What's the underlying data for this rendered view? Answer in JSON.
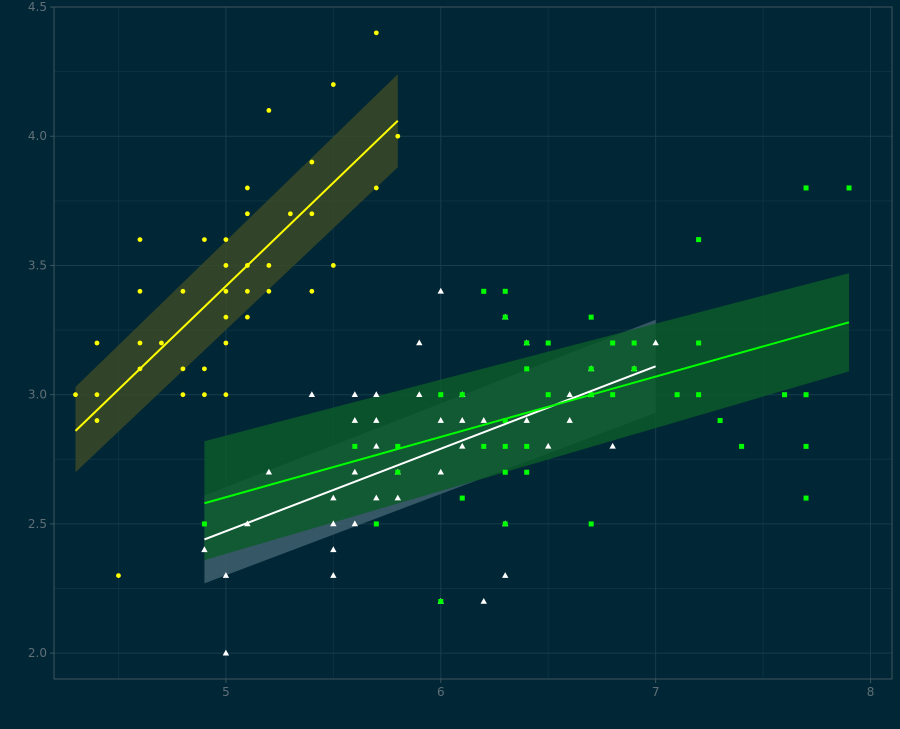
{
  "chart_data": {
    "type": "scatter",
    "title": "",
    "xlabel": "",
    "ylabel": "",
    "xlim": [
      4.2,
      8.1
    ],
    "ylim": [
      1.9,
      4.5
    ],
    "x_ticks": [
      5,
      6,
      7,
      8
    ],
    "y_ticks": [
      2.0,
      2.5,
      3.0,
      3.5,
      4.0,
      4.5
    ],
    "x_tick_labels": [
      "5",
      "6",
      "7",
      "8"
    ],
    "y_tick_labels": [
      "2.0",
      "2.5",
      "3.0",
      "3.5",
      "4.0",
      "4.5"
    ],
    "grid": true,
    "legend": "none",
    "background": "#012635",
    "series": [
      {
        "marker": "circle",
        "color": "#ffff00",
        "band_color": "#3a4a27",
        "fit": {
          "x": [
            4.3,
            5.8
          ],
          "y": [
            2.86,
            4.06
          ],
          "lower": [
            2.7,
            3.88
          ],
          "upper": [
            3.03,
            4.24
          ]
        },
        "points": [
          [
            4.3,
            3.0
          ],
          [
            4.4,
            2.9
          ],
          [
            4.4,
            3.0
          ],
          [
            4.4,
            3.2
          ],
          [
            4.5,
            2.3
          ],
          [
            4.6,
            3.1
          ],
          [
            4.6,
            3.2
          ],
          [
            4.6,
            3.4
          ],
          [
            4.6,
            3.6
          ],
          [
            4.7,
            3.2
          ],
          [
            4.8,
            3.0
          ],
          [
            4.8,
            3.1
          ],
          [
            4.8,
            3.4
          ],
          [
            4.9,
            3.0
          ],
          [
            4.9,
            3.1
          ],
          [
            4.9,
            3.6
          ],
          [
            5.0,
            3.0
          ],
          [
            5.0,
            3.2
          ],
          [
            5.0,
            3.3
          ],
          [
            5.0,
            3.4
          ],
          [
            5.0,
            3.5
          ],
          [
            5.0,
            3.6
          ],
          [
            5.1,
            3.3
          ],
          [
            5.1,
            3.4
          ],
          [
            5.1,
            3.5
          ],
          [
            5.1,
            3.7
          ],
          [
            5.1,
            3.8
          ],
          [
            5.2,
            3.4
          ],
          [
            5.2,
            3.5
          ],
          [
            5.2,
            4.1
          ],
          [
            5.3,
            3.7
          ],
          [
            5.4,
            3.4
          ],
          [
            5.4,
            3.7
          ],
          [
            5.4,
            3.9
          ],
          [
            5.5,
            3.5
          ],
          [
            5.5,
            4.2
          ],
          [
            5.7,
            3.8
          ],
          [
            5.7,
            4.4
          ],
          [
            5.8,
            4.0
          ]
        ]
      },
      {
        "marker": "triangle",
        "color": "#ffffff",
        "band_color": "#40606d",
        "fit": {
          "x": [
            4.9,
            7.0
          ],
          "y": [
            2.44,
            3.11
          ],
          "lower": [
            2.27,
            2.93
          ],
          "upper": [
            2.61,
            3.29
          ]
        },
        "points": [
          [
            4.9,
            2.4
          ],
          [
            5.0,
            2.0
          ],
          [
            5.0,
            2.3
          ],
          [
            5.1,
            2.5
          ],
          [
            5.2,
            2.7
          ],
          [
            5.4,
            3.0
          ],
          [
            5.5,
            2.3
          ],
          [
            5.5,
            2.4
          ],
          [
            5.5,
            2.5
          ],
          [
            5.5,
            2.6
          ],
          [
            5.6,
            2.5
          ],
          [
            5.6,
            2.7
          ],
          [
            5.6,
            2.9
          ],
          [
            5.6,
            3.0
          ],
          [
            5.7,
            2.6
          ],
          [
            5.7,
            2.8
          ],
          [
            5.7,
            2.9
          ],
          [
            5.7,
            3.0
          ],
          [
            5.8,
            2.6
          ],
          [
            5.8,
            2.7
          ],
          [
            5.9,
            3.0
          ],
          [
            5.9,
            3.2
          ],
          [
            6.0,
            2.2
          ],
          [
            6.0,
            2.7
          ],
          [
            6.0,
            2.9
          ],
          [
            6.0,
            3.4
          ],
          [
            6.1,
            2.8
          ],
          [
            6.1,
            2.9
          ],
          [
            6.1,
            3.0
          ],
          [
            6.2,
            2.2
          ],
          [
            6.2,
            2.9
          ],
          [
            6.3,
            2.3
          ],
          [
            6.3,
            2.5
          ],
          [
            6.3,
            3.3
          ],
          [
            6.4,
            2.9
          ],
          [
            6.4,
            3.2
          ],
          [
            6.5,
            2.8
          ],
          [
            6.6,
            2.9
          ],
          [
            6.6,
            3.0
          ],
          [
            6.7,
            3.0
          ],
          [
            6.7,
            3.1
          ],
          [
            6.8,
            2.8
          ],
          [
            6.9,
            3.1
          ],
          [
            7.0,
            3.2
          ]
        ]
      },
      {
        "marker": "square",
        "color": "#00ff00",
        "band_color": "#0c5a2a",
        "fit": {
          "x": [
            4.9,
            7.9
          ],
          "y": [
            2.58,
            3.28
          ],
          "lower": [
            2.36,
            3.09
          ],
          "upper": [
            2.82,
            3.47
          ]
        },
        "points": [
          [
            4.9,
            2.5
          ],
          [
            5.6,
            2.8
          ],
          [
            5.7,
            2.5
          ],
          [
            5.8,
            2.7
          ],
          [
            5.8,
            2.8
          ],
          [
            6.0,
            2.2
          ],
          [
            6.0,
            3.0
          ],
          [
            6.1,
            2.6
          ],
          [
            6.1,
            3.0
          ],
          [
            6.2,
            2.8
          ],
          [
            6.2,
            3.4
          ],
          [
            6.3,
            2.5
          ],
          [
            6.3,
            2.7
          ],
          [
            6.3,
            2.8
          ],
          [
            6.3,
            2.9
          ],
          [
            6.3,
            3.3
          ],
          [
            6.3,
            3.4
          ],
          [
            6.4,
            2.7
          ],
          [
            6.4,
            2.8
          ],
          [
            6.4,
            3.1
          ],
          [
            6.4,
            3.2
          ],
          [
            6.5,
            3.0
          ],
          [
            6.5,
            3.2
          ],
          [
            6.7,
            2.5
          ],
          [
            6.7,
            3.0
          ],
          [
            6.7,
            3.1
          ],
          [
            6.7,
            3.3
          ],
          [
            6.8,
            3.0
          ],
          [
            6.8,
            3.2
          ],
          [
            6.9,
            3.1
          ],
          [
            6.9,
            3.2
          ],
          [
            7.1,
            3.0
          ],
          [
            7.2,
            3.0
          ],
          [
            7.2,
            3.2
          ],
          [
            7.2,
            3.6
          ],
          [
            7.3,
            2.9
          ],
          [
            7.4,
            2.8
          ],
          [
            7.6,
            3.0
          ],
          [
            7.7,
            2.6
          ],
          [
            7.7,
            2.8
          ],
          [
            7.7,
            3.0
          ],
          [
            7.7,
            3.8
          ],
          [
            7.9,
            3.8
          ]
        ]
      }
    ]
  }
}
